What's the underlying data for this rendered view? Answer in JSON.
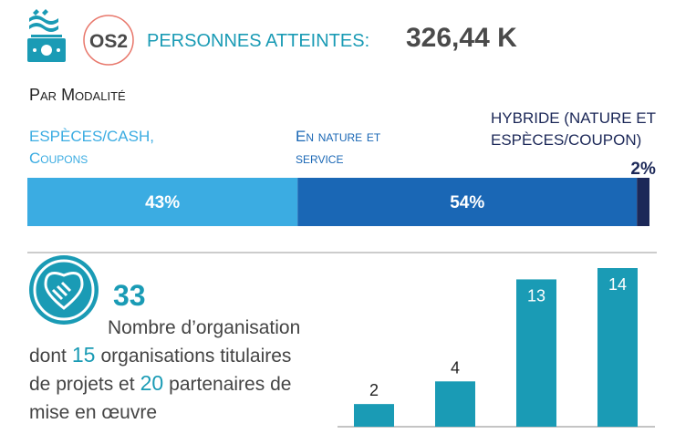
{
  "header": {
    "badge": "OS2",
    "label": "PERSONNES ATTEINTES:",
    "value": "326,44 K"
  },
  "modalite": {
    "title": "Par Modalité",
    "segments": [
      {
        "name": [
          "ESPÈCES/CASH,",
          "Coupons"
        ],
        "value": 43,
        "value_label": "43%",
        "color": "#3bace2"
      },
      {
        "name": [
          "En nature et",
          "service"
        ],
        "value": 54,
        "value_label": "54%",
        "color": "#1a67b5"
      },
      {
        "name": [
          "HYBRIDE (NATURE ET",
          "ESPÈCES/COUPON)"
        ],
        "value": 2,
        "value_label": "2%",
        "color": "#1c2858"
      }
    ]
  },
  "organisations": {
    "count": 33,
    "description": [
      [
        "Nombre d’organisation"
      ],
      [
        "dont",
        15,
        "organisations titulaires"
      ],
      [
        "de projets et",
        20,
        "partenaires de"
      ],
      [
        "mise en œuvre"
      ]
    ]
  },
  "chart_data": {
    "type": "bar",
    "categories": [
      null,
      null,
      null,
      null
    ],
    "values": [
      2,
      4,
      13,
      14
    ],
    "color": "#1a9bb5"
  }
}
